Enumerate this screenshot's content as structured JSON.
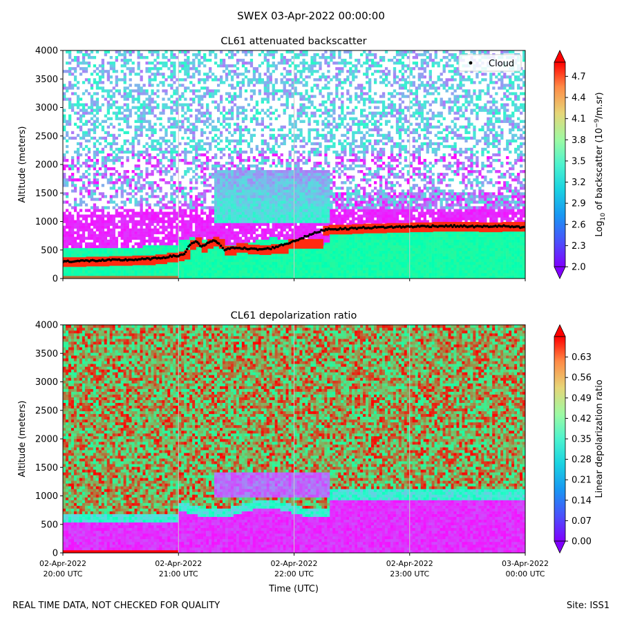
{
  "figure": {
    "title": "SWEX 03-Apr-2022 00:00:00",
    "footer_left": "REAL TIME DATA, NOT CHECKED FOR QUALITY",
    "footer_right": "Site: ISS1"
  },
  "chart_data": [
    {
      "type": "heatmap",
      "title": "CL61 attenuated backscatter",
      "ylabel": "Altitude (meters)",
      "ylim": [
        0,
        4000
      ],
      "yticks": [
        0,
        500,
        1000,
        1500,
        2000,
        2500,
        3000,
        3500,
        4000
      ],
      "xlim_hours": [
        20,
        24
      ],
      "xticks_hours": [
        20,
        21,
        22,
        23,
        24
      ],
      "xtick_labels": [],
      "colorbar": {
        "label": "Log10 of backscatter (10^-9/m.sr)",
        "label_main": "Log",
        "label_sub": "10",
        "label_rest": " of backscatter (10",
        "label_sup": "−9",
        "label_end": "/m.sr)",
        "range": [
          2.0,
          4.9
        ],
        "ticks": [
          "2.0",
          "2.3",
          "2.6",
          "2.9",
          "3.2",
          "3.5",
          "3.8",
          "4.1",
          "4.4",
          "4.7"
        ],
        "extend": "both",
        "colormap": "rainbow"
      },
      "legend": {
        "entries": [
          "Cloud"
        ],
        "position": "top-right"
      },
      "cloud_base_series": {
        "name": "Cloud",
        "hours": [
          20.0,
          20.2,
          20.4,
          20.6,
          20.8,
          20.9,
          21.0,
          21.05,
          21.1,
          21.15,
          21.2,
          21.25,
          21.3,
          21.35,
          21.4,
          21.5,
          21.6,
          21.7,
          21.8,
          21.95,
          22.25,
          22.3,
          22.4,
          22.5,
          22.6,
          22.8,
          23.0,
          23.2,
          23.4,
          23.6,
          23.8,
          24.0
        ],
        "altitude_m": [
          300,
          310,
          320,
          330,
          350,
          380,
          400,
          430,
          600,
          650,
          550,
          620,
          660,
          620,
          500,
          550,
          520,
          510,
          530,
          620,
          850,
          870,
          870,
          880,
          890,
          900,
          910,
          920,
          920,
          910,
          920,
          890
        ]
      },
      "features": {
        "surface_layer_top_m": 650,
        "boundary_layer_top_m": 900,
        "elevated_layer_m": [
          1000,
          1900
        ],
        "elevated_layer_hours": [
          21.3,
          22.3
        ]
      }
    },
    {
      "type": "heatmap",
      "title": "CL61 depolarization ratio",
      "ylabel": "Altitude (meters)",
      "xlabel": "Time (UTC)",
      "ylim": [
        0,
        4000
      ],
      "yticks": [
        0,
        500,
        1000,
        1500,
        2000,
        2500,
        3000,
        3500,
        4000
      ],
      "xlim_hours": [
        20,
        24
      ],
      "xticks_hours": [
        20,
        21,
        22,
        23,
        24
      ],
      "xtick_labels": [
        [
          "02-Apr-2022",
          "20:00 UTC"
        ],
        [
          "02-Apr-2022",
          "21:00 UTC"
        ],
        [
          "02-Apr-2022",
          "22:00 UTC"
        ],
        [
          "02-Apr-2022",
          "23:00 UTC"
        ],
        [
          "03-Apr-2022",
          "00:00 UTC"
        ]
      ],
      "colorbar": {
        "label": "Linear depolarization ratio",
        "range": [
          0.0,
          0.7
        ],
        "ticks": [
          "0.00",
          "0.07",
          "0.14",
          "0.21",
          "0.28",
          "0.35",
          "0.42",
          "0.49",
          "0.56",
          "0.63"
        ],
        "extend": "both",
        "colormap": "rainbow"
      },
      "features": {
        "low_depol_top_m": 550,
        "boundary_layer_top_m": 950,
        "elevated_layer_m": [
          1000,
          1400
        ],
        "elevated_layer_hours": [
          21.3,
          22.3
        ]
      }
    }
  ]
}
